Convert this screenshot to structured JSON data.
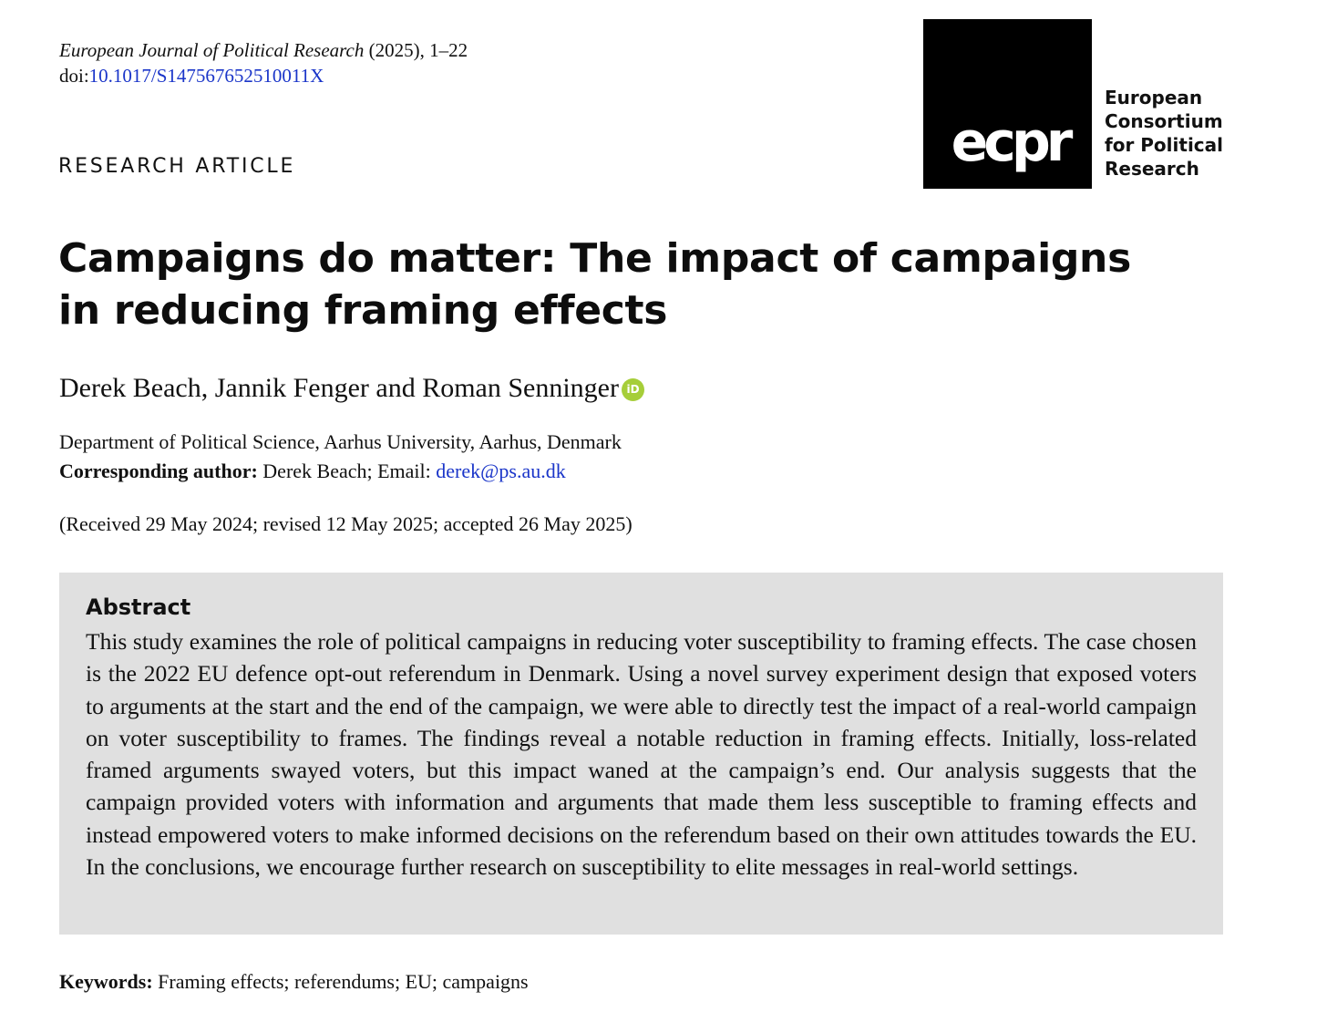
{
  "header": {
    "journal_name": "European Journal of Political Research",
    "journal_rest": " (2025), 1–22",
    "doi_prefix": "doi:",
    "doi": "10.1017/S147567652510011X",
    "article_type": "RESEARCH ARTICLE"
  },
  "logo": {
    "word": "ecpr",
    "lines": [
      "European",
      "Consortium",
      "for Political",
      "Research"
    ]
  },
  "title": {
    "line1": "Campaigns do matter: The impact of campaigns",
    "line2": "in reducing framing effects"
  },
  "authors": {
    "names": "Derek Beach, Jannik Fenger and Roman Senninger",
    "orcid_label": "iD"
  },
  "affiliation": "Department of Political Science, Aarhus University, Aarhus, Denmark",
  "corresponding": {
    "label": "Corresponding author:",
    "text": " Derek Beach; Email: ",
    "email": "derek@ps.au.dk"
  },
  "dates": "(Received 29 May 2024; revised 12 May 2025; accepted 26 May 2025)",
  "abstract": {
    "heading": "Abstract",
    "body": "This study examines the role of political campaigns in reducing voter susceptibility to framing effects. The case chosen is the 2022 EU defence opt-out referendum in Denmark. Using a novel survey experiment design that exposed voters to arguments at the start and the end of the campaign, we were able to directly test the impact of a real-world campaign on voter susceptibility to frames. The findings reveal a notable reduction in framing effects. Initially, loss-related framed arguments swayed voters, but this impact waned at the campaign’s end. Our analysis suggests that the campaign provided voters with information and arguments that made them less susceptible to framing effects and instead empowered voters to make informed decisions on the referendum based on their own attitudes towards the EU. In the conclusions, we encourage further research on susceptibility to elite messages in real-world settings."
  },
  "keywords": {
    "label": "Keywords:",
    "text": " Framing effects; referendums; EU; campaigns"
  },
  "colors": {
    "link": "#1a35c9",
    "abstract_bg": "#e0e0e0",
    "orcid": "#a6ce39"
  }
}
